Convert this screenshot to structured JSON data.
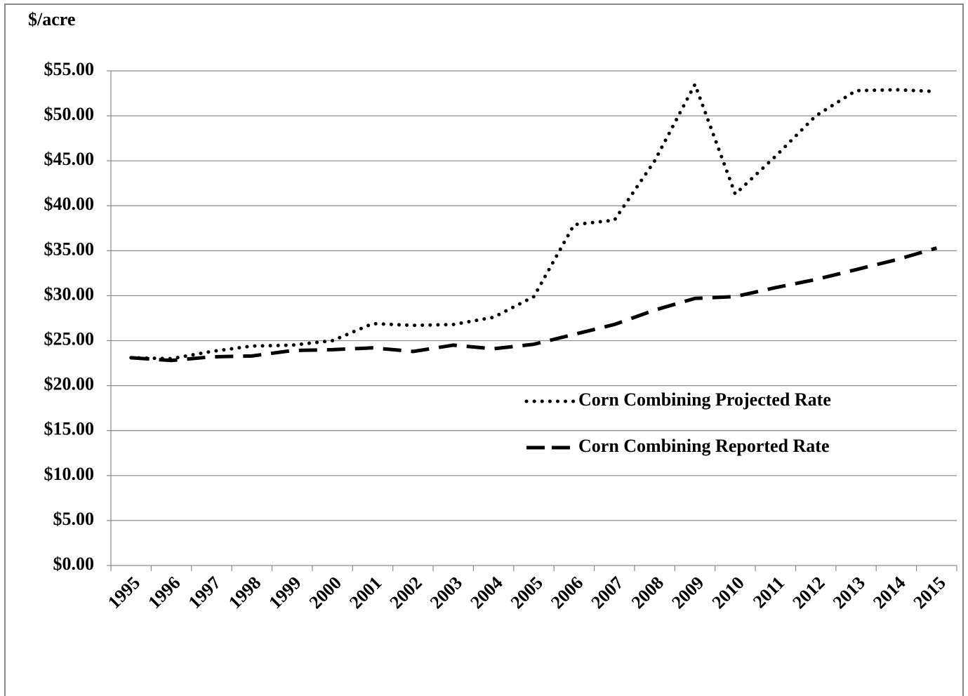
{
  "chart_data": {
    "type": "line",
    "y_label": "$/acre",
    "categories": [
      "1995",
      "1996",
      "1997",
      "1998",
      "1999",
      "2000",
      "2001",
      "2002",
      "2003",
      "2004",
      "2005",
      "2006",
      "2007",
      "2008",
      "2009",
      "2010",
      "2011",
      "2012",
      "2013",
      "2014",
      "2015"
    ],
    "series": [
      {
        "name": "Corn Combining Projected Rate",
        "color": "#000000",
        "dash": "dotted",
        "values": [
          23.1,
          23.0,
          23.8,
          24.4,
          24.5,
          25.0,
          26.9,
          26.7,
          26.8,
          27.6,
          29.9,
          37.9,
          38.4,
          45.0,
          53.5,
          41.3,
          45.5,
          50.0,
          52.8,
          52.9,
          52.7
        ]
      },
      {
        "name": "Corn Combining Reported Rate",
        "color": "#000000",
        "dash": "dashed",
        "values": [
          23.1,
          22.8,
          23.2,
          23.3,
          23.9,
          24.0,
          24.2,
          23.8,
          24.5,
          24.1,
          24.6,
          25.7,
          26.8,
          28.4,
          29.7,
          29.9,
          30.9,
          31.8,
          32.9,
          34.0,
          35.3
        ]
      }
    ],
    "ylim": [
      0,
      55
    ],
    "yticks": [
      {
        "value": 0,
        "label": "$0.00"
      },
      {
        "value": 5,
        "label": "$5.00"
      },
      {
        "value": 10,
        "label": "$10.00"
      },
      {
        "value": 15,
        "label": "$15.00"
      },
      {
        "value": 20,
        "label": "$20.00"
      },
      {
        "value": 25,
        "label": "$25.00"
      },
      {
        "value": 30,
        "label": "$30.00"
      },
      {
        "value": 35,
        "label": "$35.00"
      },
      {
        "value": 40,
        "label": "$40.00"
      },
      {
        "value": 45,
        "label": "$45.00"
      },
      {
        "value": 50,
        "label": "$50.00"
      },
      {
        "value": 55,
        "label": "$55.00"
      }
    ],
    "grid": true,
    "legend": "right"
  }
}
